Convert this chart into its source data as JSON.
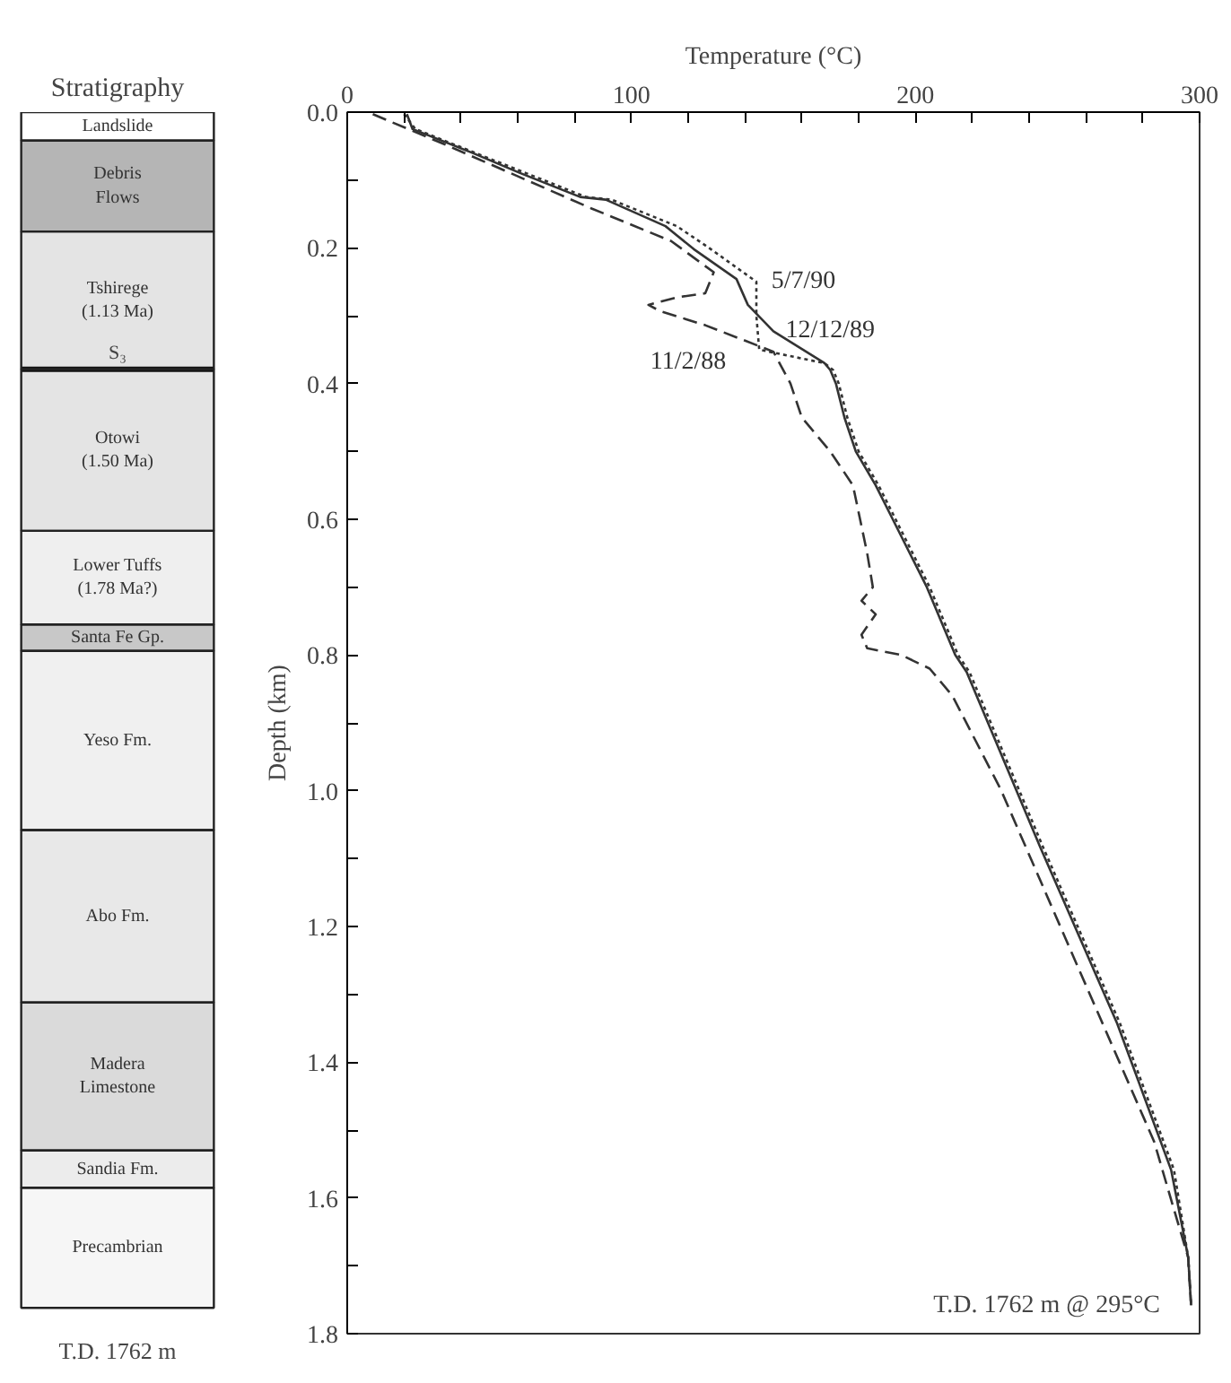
{
  "chart_data": [
    {
      "type": "bar",
      "stacked": true,
      "title": "Stratigraphy",
      "categories": [
        null
      ],
      "ylim": [
        1.8,
        0
      ],
      "tick_labels": false,
      "series": [
        {
          "name": "Landslide",
          "color": "#ffffff",
          "values": [
            0.042
          ]
        },
        {
          "name": "Debris\nFlows",
          "color": "#b5b5b5",
          "values": [
            0.134
          ]
        },
        {
          "name": "Tshirege\n(1.13 Ma)",
          "color": "#e4e4e4",
          "values": [
            0.203
          ]
        },
        {
          "name": "Otowi\n(1.50 Ma)",
          "color": "#e4e4e4",
          "values": [
            0.238
          ]
        },
        {
          "name": "Lower Tuffs\n(1.78 Ma?)",
          "color": "#efefef",
          "values": [
            0.138
          ]
        },
        {
          "name": "Santa Fe Gp.",
          "color": "#c8c8c8",
          "values": [
            0.039
          ]
        },
        {
          "name": "Yeso Fm.",
          "color": "#f0f0f0",
          "values": [
            0.264
          ]
        },
        {
          "name": "Abo Fm.",
          "color": "#e8e8e8",
          "values": [
            0.254
          ]
        },
        {
          "name": "Madera\nLimestone",
          "color": "#dadada",
          "values": [
            0.218
          ]
        },
        {
          "name": "Sandia Fm.",
          "color": "#ececec",
          "values": [
            0.055
          ]
        },
        {
          "name": "Precambrian",
          "color": "#f6f6f6",
          "values": [
            0.177
          ]
        }
      ],
      "ref_lines": [
        {
          "axis": "y",
          "value": 0.379,
          "label": "S₃",
          "color": "#111111"
        }
      ],
      "annotations": [
        "T.D. 1762 m"
      ]
    },
    {
      "type": "line",
      "xlabel": "Temperature (°C)",
      "ylabel": "Depth (km)",
      "xlim": [
        0,
        300
      ],
      "ylim": [
        1.8,
        0
      ],
      "xticks": [
        0,
        {
          "value": 20,
          "label": null
        },
        {
          "value": 40,
          "label": null
        },
        {
          "value": 60,
          "label": null
        },
        {
          "value": 80,
          "label": null
        },
        100,
        {
          "value": 120,
          "label": null
        },
        {
          "value": 140,
          "label": null
        },
        {
          "value": 160,
          "label": null
        },
        {
          "value": 180,
          "label": null
        },
        200,
        {
          "value": 220,
          "label": null
        },
        {
          "value": 240,
          "label": null
        },
        {
          "value": 260,
          "label": null
        },
        {
          "value": 280,
          "label": null
        },
        300
      ],
      "yticks": [
        {
          "value": 0,
          "label": "0.0"
        },
        {
          "value": 0.1,
          "label": null
        },
        0.2,
        {
          "value": 0.3,
          "label": null
        },
        0.4,
        {
          "value": 0.5,
          "label": null
        },
        0.6,
        {
          "value": 0.7,
          "label": null
        },
        0.8,
        {
          "value": 0.9,
          "label": null
        },
        {
          "value": 1.0,
          "label": "1.0"
        },
        {
          "value": 1.1,
          "label": null
        },
        1.2,
        {
          "value": 1.3,
          "label": null
        },
        1.4,
        {
          "value": 1.5,
          "label": null
        },
        1.6,
        {
          "value": 1.7,
          "label": null
        },
        1.8
      ],
      "grid": false,
      "legend": false,
      "series": [
        {
          "name": "12/12/89",
          "color": "#333333",
          "line_style": "solid",
          "x": [
            21,
            23,
            44,
            61,
            82,
            91,
            112,
            122,
            137,
            141,
            150,
            168,
            170,
            172,
            175,
            179,
            186,
            192,
            204,
            214,
            218,
            244,
            271,
            290,
            296,
            297
          ],
          "values": [
            0.003,
            0.025,
            0.06,
            0.09,
            0.125,
            0.129,
            0.168,
            0.202,
            0.246,
            0.284,
            0.323,
            0.37,
            0.38,
            0.4,
            0.45,
            0.5,
            0.55,
            0.6,
            0.7,
            0.8,
            0.825,
            1.084,
            1.343,
            1.559,
            1.688,
            1.758
          ]
        },
        {
          "name": "5/7/90",
          "color": "#333333",
          "line_style": "dotted",
          "x": [
            20,
            24,
            45,
            63,
            84,
            93,
            116,
            128,
            144,
            144,
            145,
            168,
            171,
            173,
            176,
            180,
            187,
            193,
            205,
            215,
            219,
            245,
            272,
            291,
            296,
            297
          ],
          "values": [
            0.003,
            0.025,
            0.06,
            0.09,
            0.125,
            0.129,
            0.168,
            0.202,
            0.25,
            0.3,
            0.35,
            0.37,
            0.38,
            0.4,
            0.45,
            0.5,
            0.55,
            0.6,
            0.7,
            0.8,
            0.825,
            1.084,
            1.343,
            1.559,
            1.688,
            1.758
          ]
        },
        {
          "name": "11/2/88",
          "color": "#333333",
          "line_style": "dashed",
          "x": [
            9,
            34,
            86,
            114,
            129,
            126,
            116,
            106,
            110,
            126,
            150,
            156,
            160,
            170,
            178,
            183,
            185,
            181,
            186,
            181,
            183,
            195,
            205,
            213,
            230,
            257,
            284,
            290,
            296,
            297
          ],
          "values": [
            0.003,
            0.047,
            0.142,
            0.19,
            0.236,
            0.267,
            0.273,
            0.284,
            0.293,
            0.314,
            0.353,
            0.4,
            0.45,
            0.5,
            0.55,
            0.65,
            0.7,
            0.72,
            0.74,
            0.77,
            0.79,
            0.8,
            0.82,
            0.86,
            0.998,
            1.258,
            1.517,
            1.603,
            1.688,
            1.758
          ]
        }
      ],
      "annotations": [
        "T.D. 1762 m @ 295°C"
      ]
    }
  ]
}
